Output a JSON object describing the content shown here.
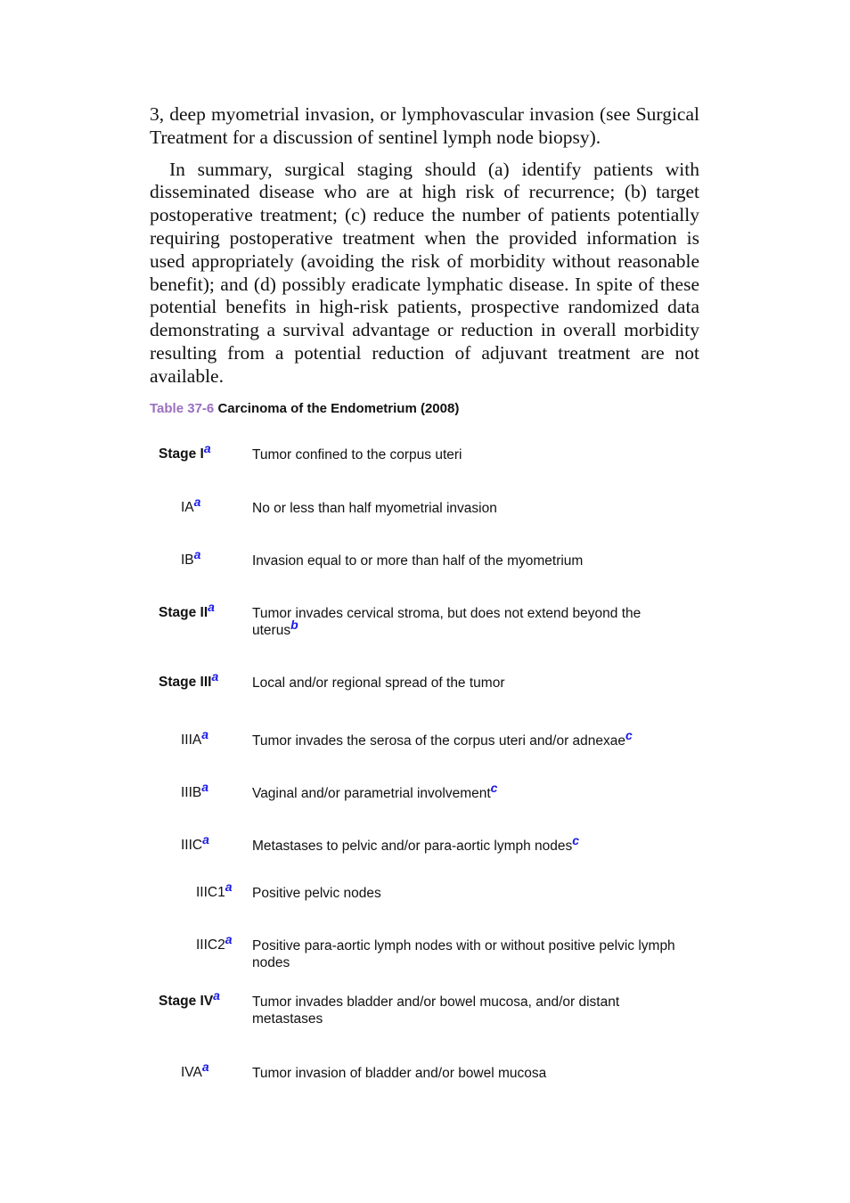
{
  "paragraphs": [
    "3, deep myometrial invasion, or lymphovascular invasion (see Surgical Treatment for a discussion of sentinel lymph node biopsy).",
    "In summary, surgical staging should (a) identify patients with disseminated disease who are at high risk of recurrence; (b) target postoperative treatment; (c) reduce the number of patients potentially requiring postoperative treatment when the provided information is used appropriately (avoiding the risk of morbidity without reasonable benefit); and (d) possibly eradicate lymphatic disease. In spite of these potential benefits in high-risk patients, prospective randomized data demonstrating a survival advantage or reduction in overall morbidity resulting from a potential reduction of adjuvant treatment are not available."
  ],
  "table": {
    "caption_number": "Table 37-6",
    "caption_title": "Carcinoma of the Endometrium (2008)",
    "rows": [
      {
        "stage": "Stage I",
        "stage_fn": "a",
        "desc": "Tumor confined to the corpus uteri",
        "desc_fn": ""
      },
      {
        "stage": "IA",
        "stage_fn": "a",
        "desc": "No or less than half myometrial invasion",
        "desc_fn": ""
      },
      {
        "stage": "IB",
        "stage_fn": "a",
        "desc": "Invasion equal to or more than half of the myometrium",
        "desc_fn": ""
      },
      {
        "stage": "Stage II",
        "stage_fn": "a",
        "desc": "Tumor invades cervical stroma, but does not extend beyond the uterus",
        "desc_fn": "b"
      },
      {
        "stage": "Stage III",
        "stage_fn": "a",
        "desc": "Local and/or regional spread of the tumor",
        "desc_fn": ""
      },
      {
        "stage": "IIIA",
        "stage_fn": "a",
        "desc": "Tumor invades the serosa of the corpus uteri and/or adnexae",
        "desc_fn": "c"
      },
      {
        "stage": "IIIB",
        "stage_fn": "a",
        "desc": "Vaginal and/or parametrial involvement",
        "desc_fn": "c"
      },
      {
        "stage": "IIIC",
        "stage_fn": "a",
        "desc": "Metastases to pelvic and/or para-aortic lymph nodes",
        "desc_fn": "c"
      },
      {
        "stage": "IIIC1",
        "stage_fn": "a",
        "desc": "Positive pelvic nodes",
        "desc_fn": ""
      },
      {
        "stage": "IIIC2",
        "stage_fn": "a",
        "desc": "Positive para-aortic lymph nodes with or without positive pelvic lymph nodes",
        "desc_fn": ""
      },
      {
        "stage": "Stage IV",
        "stage_fn": "a",
        "desc": "Tumor invades bladder and/or bowel mucosa, and/or distant metastases",
        "desc_fn": ""
      },
      {
        "stage": "IVA",
        "stage_fn": "a",
        "desc": "Tumor invasion of bladder and/or bowel mucosa",
        "desc_fn": ""
      }
    ]
  }
}
